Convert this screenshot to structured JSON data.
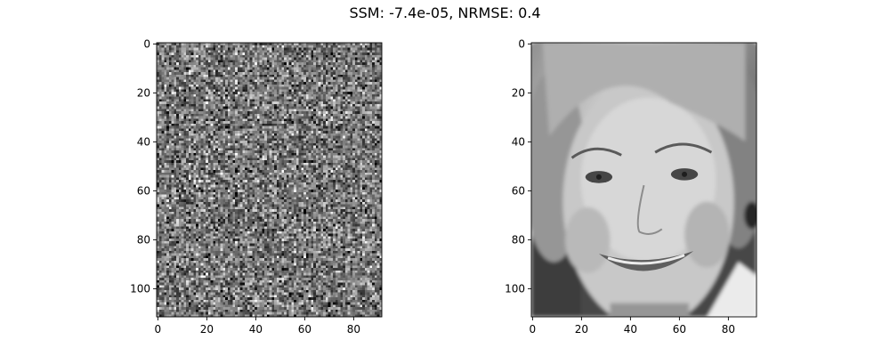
{
  "figure": {
    "title": "SSM: -7.4e-05, NRMSE: 0.4"
  },
  "chart_data": [
    {
      "type": "heatmap",
      "image_content": "random grayscale noise",
      "colormap": "gray",
      "image_shape": [
        112,
        92
      ],
      "x_ticks": [
        0,
        20,
        40,
        60,
        80
      ],
      "y_ticks": [
        0,
        20,
        40,
        60,
        80,
        100
      ],
      "x_tick_labels": [
        "0",
        "20",
        "40",
        "60",
        "80"
      ],
      "y_tick_labels": [
        "0",
        "20",
        "40",
        "60",
        "80",
        "100"
      ],
      "xlim": [
        -0.5,
        91.5
      ],
      "ylim": [
        111.5,
        -0.5
      ],
      "grid": false
    },
    {
      "type": "heatmap",
      "image_content": "grayscale photo of a smiling woman's face",
      "colormap": "gray",
      "image_shape": [
        112,
        92
      ],
      "x_ticks": [
        0,
        20,
        40,
        60,
        80
      ],
      "y_ticks": [
        0,
        20,
        40,
        60,
        80,
        100
      ],
      "x_tick_labels": [
        "0",
        "20",
        "40",
        "60",
        "80"
      ],
      "y_tick_labels": [
        "0",
        "20",
        "40",
        "60",
        "80",
        "100"
      ],
      "xlim": [
        -0.5,
        91.5
      ],
      "ylim": [
        111.5,
        -0.5
      ],
      "grid": false
    }
  ]
}
